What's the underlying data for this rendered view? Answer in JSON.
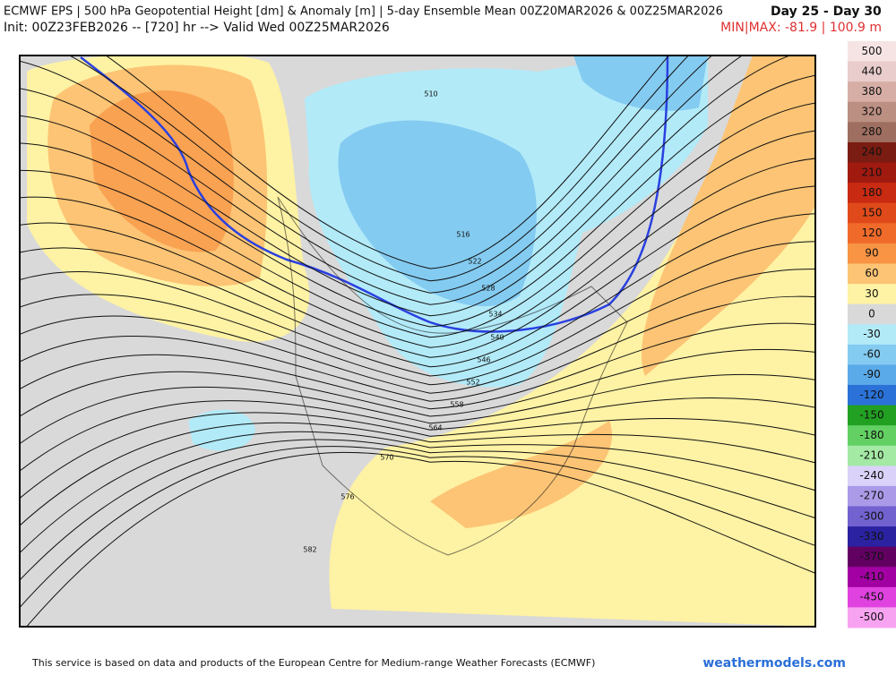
{
  "header": {
    "title": "ECMWF EPS | 500 hPa Geopotential Height [dm] & Anomaly [m] | 5-day Ensemble Mean 00Z20MAR2026 & 00Z25MAR2026",
    "period": "Day 25 - Day 30",
    "init": "Init: 00Z23FEB2026 -- [720] hr --> Valid Wed 00Z25MAR2026",
    "minmax": "MIN|MAX: -81.9 | 100.9 m"
  },
  "map": {
    "contour_labels": [
      510,
      516,
      522,
      528,
      534,
      540,
      546,
      552,
      558,
      564,
      570,
      576,
      582
    ]
  },
  "colorbar": {
    "levels": [
      500,
      440,
      380,
      320,
      280,
      240,
      210,
      180,
      150,
      120,
      90,
      60,
      30,
      0,
      -30,
      -60,
      -90,
      -120,
      -150,
      -180,
      -210,
      -240,
      -270,
      -300,
      -330,
      -370,
      -410,
      -450,
      -500
    ],
    "colors": [
      "#f6e4e4",
      "#e9cccc",
      "#d6aea6",
      "#bb8f82",
      "#9e6e60",
      "#7a1c12",
      "#a01a10",
      "#c82a12",
      "#e04a1a",
      "#f06a2a",
      "#f89444",
      "#fcc474",
      "#fef2a4",
      "#d9d9d9",
      "#b2eaf8",
      "#84cbf1",
      "#5aa9e8",
      "#2a72d8",
      "#22a022",
      "#62d062",
      "#a4e9a4",
      "#dad2f8",
      "#aa9ae8",
      "#7262d0",
      "#2a22a0",
      "#620062",
      "#a200a2",
      "#e042e0",
      "#f8a2f2"
    ]
  },
  "footer": {
    "credit": "This service is based on data and products of the European Centre for Medium-range Weather Forecasts (ECMWF)",
    "site": "weathermodels.com"
  }
}
